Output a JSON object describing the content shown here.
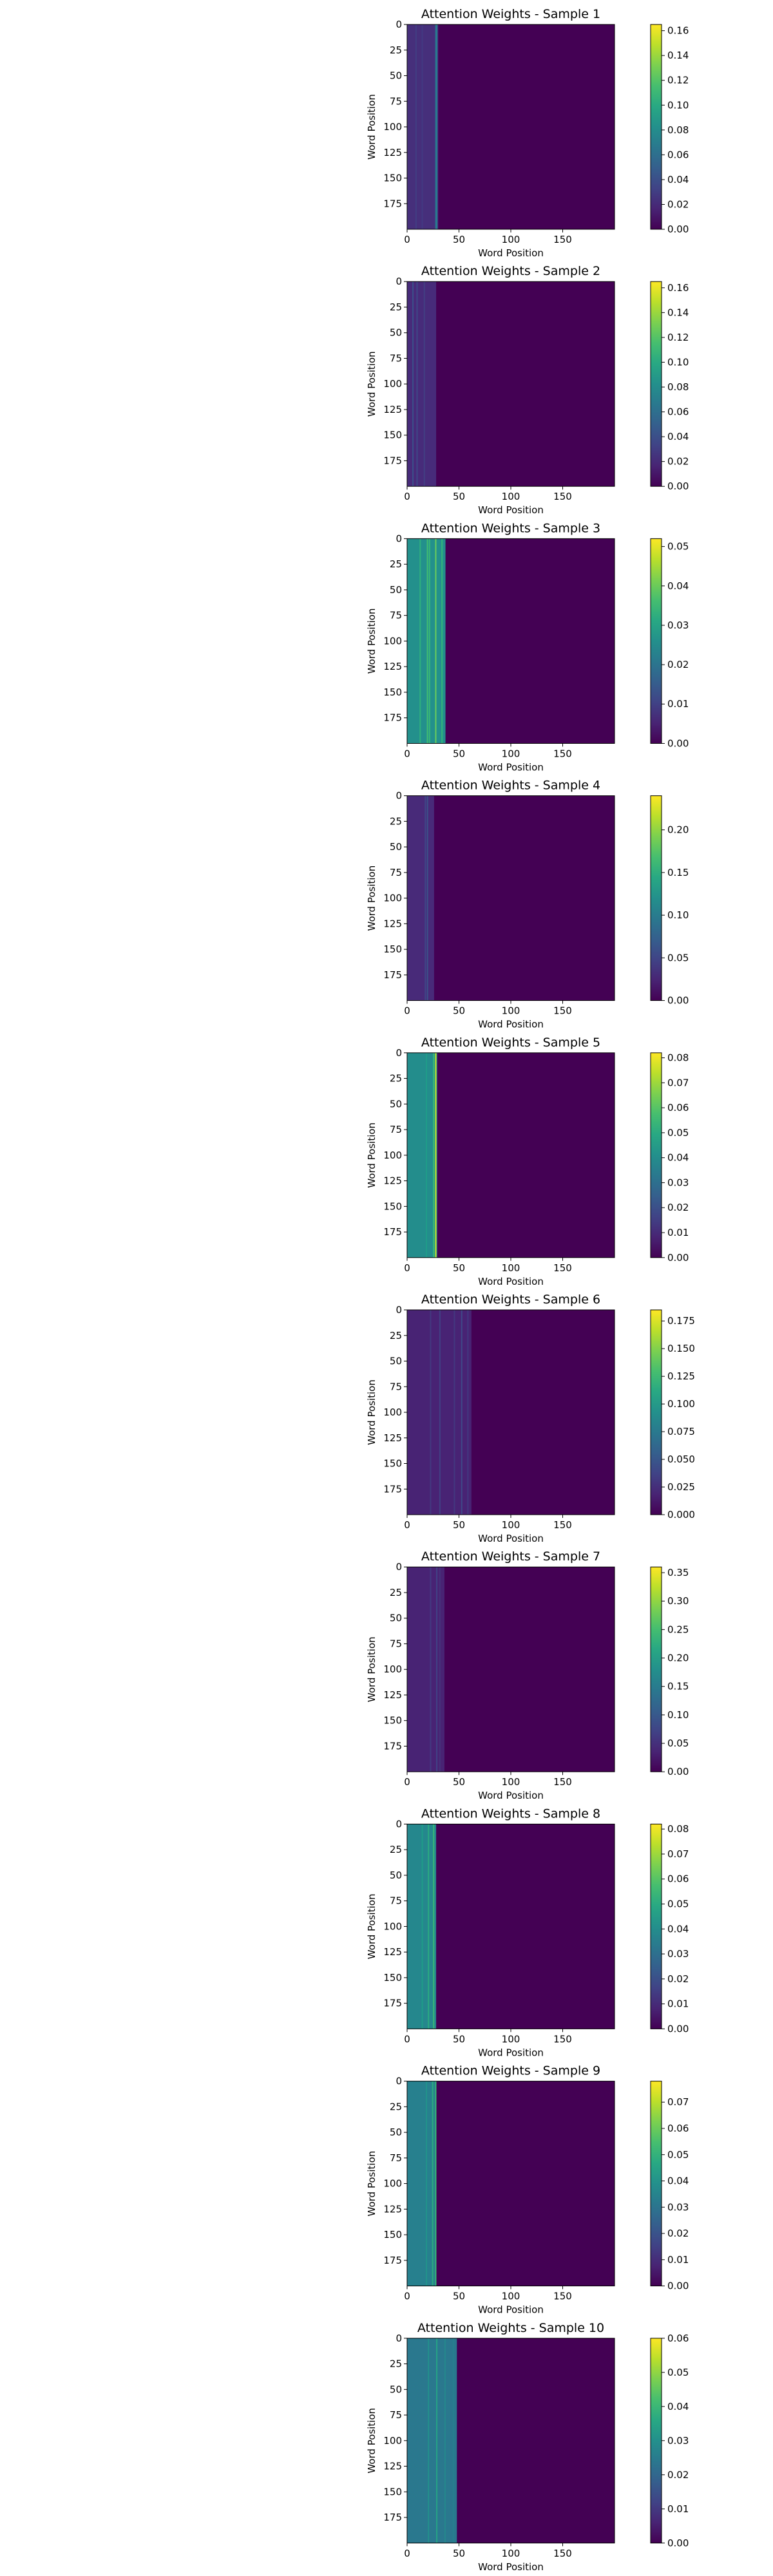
{
  "chart_data": [
    {
      "type": "heatmap",
      "title": "Attention Weights - Sample 1",
      "xlabel": "Word Position",
      "ylabel": "Word Position",
      "x_range": [
        0,
        200
      ],
      "y_range": [
        0,
        200
      ],
      "xticks": [
        0,
        50,
        100,
        150
      ],
      "yticks": [
        0,
        25,
        50,
        75,
        100,
        125,
        150,
        175
      ],
      "colormap": "viridis",
      "colorbar_range": [
        0,
        0.165
      ],
      "colorbar_ticks": [
        "0.00",
        "0.02",
        "0.04",
        "0.06",
        "0.08",
        "0.10",
        "0.12",
        "0.14",
        "0.16"
      ],
      "active_columns_end": 30,
      "base_value": 0.022,
      "column_values": [
        {
          "x": 8,
          "value": 0.03
        },
        {
          "x": 14,
          "value": 0.028
        },
        {
          "x": 27,
          "value": 0.06
        },
        {
          "x": 28,
          "value": 0.07
        }
      ]
    },
    {
      "type": "heatmap",
      "title": "Attention Weights - Sample 2",
      "xlabel": "Word Position",
      "ylabel": "Word Position",
      "x_range": [
        0,
        200
      ],
      "y_range": [
        0,
        200
      ],
      "xticks": [
        0,
        50,
        100,
        150
      ],
      "yticks": [
        0,
        25,
        50,
        75,
        100,
        125,
        150,
        175
      ],
      "colormap": "viridis",
      "colorbar_range": [
        0,
        0.165
      ],
      "colorbar_ticks": [
        "0.00",
        "0.02",
        "0.04",
        "0.06",
        "0.08",
        "0.10",
        "0.12",
        "0.14",
        "0.16"
      ],
      "active_columns_end": 28,
      "base_value": 0.02,
      "column_values": [
        {
          "x": 5,
          "value": 0.04
        },
        {
          "x": 9,
          "value": 0.035
        },
        {
          "x": 16,
          "value": 0.03
        }
      ]
    },
    {
      "type": "heatmap",
      "title": "Attention Weights - Sample 3",
      "xlabel": "Word Position",
      "ylabel": "Word Position",
      "x_range": [
        0,
        200
      ],
      "y_range": [
        0,
        200
      ],
      "xticks": [
        0,
        50,
        100,
        150
      ],
      "yticks": [
        0,
        25,
        50,
        75,
        100,
        125,
        150,
        175
      ],
      "colormap": "viridis",
      "colorbar_range": [
        0,
        0.052
      ],
      "colorbar_ticks": [
        "0.00",
        "0.01",
        "0.02",
        "0.03",
        "0.04",
        "0.05"
      ],
      "active_columns_end": 37,
      "base_value": 0.026,
      "column_values": [
        {
          "x": 12,
          "value": 0.033
        },
        {
          "x": 19,
          "value": 0.036
        },
        {
          "x": 21,
          "value": 0.035
        },
        {
          "x": 27,
          "value": 0.04
        },
        {
          "x": 33,
          "value": 0.034
        }
      ]
    },
    {
      "type": "heatmap",
      "title": "Attention Weights - Sample 4",
      "xlabel": "Word Position",
      "ylabel": "Word Position",
      "x_range": [
        0,
        200
      ],
      "y_range": [
        0,
        200
      ],
      "xticks": [
        0,
        50,
        100,
        150
      ],
      "yticks": [
        0,
        25,
        50,
        75,
        100,
        125,
        150,
        175
      ],
      "colormap": "viridis",
      "colorbar_range": [
        0,
        0.24
      ],
      "colorbar_ticks": [
        "0.00",
        "0.05",
        "0.10",
        "0.15",
        "0.20"
      ],
      "active_columns_end": 26,
      "base_value": 0.028,
      "column_values": [
        {
          "x": 17,
          "value": 0.05
        },
        {
          "x": 19,
          "value": 0.06
        }
      ]
    },
    {
      "type": "heatmap",
      "title": "Attention Weights - Sample 5",
      "xlabel": "Word Position",
      "ylabel": "Word Position",
      "x_range": [
        0,
        200
      ],
      "y_range": [
        0,
        200
      ],
      "xticks": [
        0,
        50,
        100,
        150
      ],
      "yticks": [
        0,
        25,
        50,
        75,
        100,
        125,
        150,
        175
      ],
      "colormap": "viridis",
      "colorbar_range": [
        0,
        0.082
      ],
      "colorbar_ticks": [
        "0.00",
        "0.01",
        "0.02",
        "0.03",
        "0.04",
        "0.05",
        "0.06",
        "0.07",
        "0.08"
      ],
      "active_columns_end": 29,
      "base_value": 0.04,
      "column_values": [
        {
          "x": 18,
          "value": 0.045
        },
        {
          "x": 25,
          "value": 0.055
        },
        {
          "x": 27,
          "value": 0.075
        }
      ]
    },
    {
      "type": "heatmap",
      "title": "Attention Weights - Sample 6",
      "xlabel": "Word Position",
      "ylabel": "Word Position",
      "x_range": [
        0,
        200
      ],
      "y_range": [
        0,
        200
      ],
      "xticks": [
        0,
        50,
        100,
        150
      ],
      "yticks": [
        0,
        25,
        50,
        75,
        100,
        125,
        150,
        175
      ],
      "colormap": "viridis",
      "colorbar_range": [
        0,
        0.185
      ],
      "colorbar_ticks": [
        "0.000",
        "0.025",
        "0.050",
        "0.075",
        "0.100",
        "0.125",
        "0.150",
        "0.175"
      ],
      "active_columns_end": 62,
      "base_value": 0.018,
      "column_values": [
        {
          "x": 22,
          "value": 0.03
        },
        {
          "x": 31,
          "value": 0.035
        },
        {
          "x": 45,
          "value": 0.03
        },
        {
          "x": 52,
          "value": 0.04
        },
        {
          "x": 58,
          "value": 0.03
        }
      ]
    },
    {
      "type": "heatmap",
      "title": "Attention Weights - Sample 7",
      "xlabel": "Word Position",
      "ylabel": "Word Position",
      "x_range": [
        0,
        200
      ],
      "y_range": [
        0,
        200
      ],
      "xticks": [
        0,
        50,
        100,
        150
      ],
      "yticks": [
        0,
        25,
        50,
        75,
        100,
        125,
        150,
        175
      ],
      "colormap": "viridis",
      "colorbar_range": [
        0,
        0.36
      ],
      "colorbar_ticks": [
        "0.00",
        "0.05",
        "0.10",
        "0.15",
        "0.20",
        "0.25",
        "0.30",
        "0.35"
      ],
      "active_columns_end": 36,
      "base_value": 0.035,
      "column_values": [
        {
          "x": 22,
          "value": 0.06
        },
        {
          "x": 28,
          "value": 0.07
        },
        {
          "x": 31,
          "value": 0.05
        }
      ]
    },
    {
      "type": "heatmap",
      "title": "Attention Weights - Sample 8",
      "xlabel": "Word Position",
      "ylabel": "Word Position",
      "x_range": [
        0,
        200
      ],
      "y_range": [
        0,
        200
      ],
      "xticks": [
        0,
        50,
        100,
        150
      ],
      "yticks": [
        0,
        25,
        50,
        75,
        100,
        125,
        150,
        175
      ],
      "colormap": "viridis",
      "colorbar_range": [
        0,
        0.082
      ],
      "colorbar_ticks": [
        "0.00",
        "0.01",
        "0.02",
        "0.03",
        "0.04",
        "0.05",
        "0.06",
        "0.07",
        "0.08"
      ],
      "active_columns_end": 28,
      "base_value": 0.038,
      "column_values": [
        {
          "x": 14,
          "value": 0.045
        },
        {
          "x": 20,
          "value": 0.05
        },
        {
          "x": 25,
          "value": 0.055
        }
      ]
    },
    {
      "type": "heatmap",
      "title": "Attention Weights - Sample 9",
      "xlabel": "Word Position",
      "ylabel": "Word Position",
      "x_range": [
        0,
        200
      ],
      "y_range": [
        0,
        200
      ],
      "xticks": [
        0,
        50,
        100,
        150
      ],
      "yticks": [
        0,
        25,
        50,
        75,
        100,
        125,
        150,
        175
      ],
      "colormap": "viridis",
      "colorbar_range": [
        0,
        0.078
      ],
      "colorbar_ticks": [
        "0.00",
        "0.01",
        "0.02",
        "0.03",
        "0.04",
        "0.05",
        "0.06",
        "0.07"
      ],
      "active_columns_end": 28,
      "base_value": 0.034,
      "column_values": [
        {
          "x": 18,
          "value": 0.04
        },
        {
          "x": 24,
          "value": 0.048
        },
        {
          "x": 27,
          "value": 0.052
        }
      ]
    },
    {
      "type": "heatmap",
      "title": "Attention Weights - Sample 10",
      "xlabel": "Word Position",
      "ylabel": "Word Position",
      "x_range": [
        0,
        200
      ],
      "y_range": [
        0,
        200
      ],
      "xticks": [
        0,
        50,
        100,
        150
      ],
      "yticks": [
        0,
        25,
        50,
        75,
        100,
        125,
        150,
        175
      ],
      "colormap": "viridis",
      "colorbar_range": [
        0,
        0.06
      ],
      "colorbar_ticks": [
        "0.00",
        "0.01",
        "0.02",
        "0.03",
        "0.04",
        "0.05",
        "0.06"
      ],
      "active_columns_end": 48,
      "base_value": 0.024,
      "column_values": [
        {
          "x": 20,
          "value": 0.03
        },
        {
          "x": 28,
          "value": 0.035
        },
        {
          "x": 36,
          "value": 0.028
        },
        {
          "x": 44,
          "value": 0.026
        }
      ]
    }
  ]
}
